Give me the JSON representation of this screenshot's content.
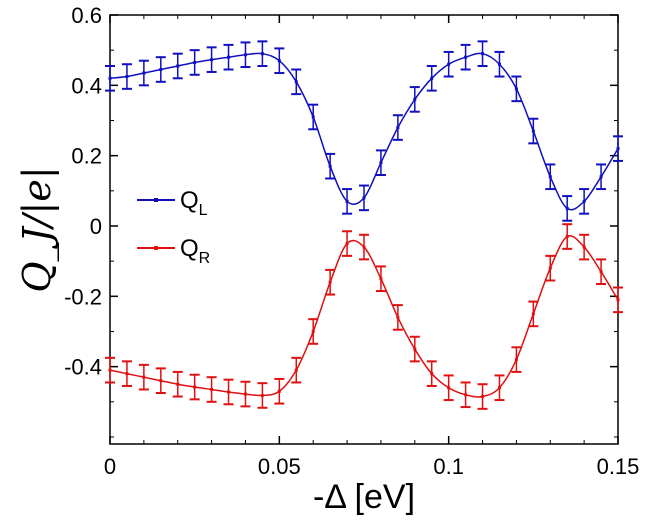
{
  "chart_data": {
    "type": "line",
    "xlabel": "-Δ [eV]",
    "ylabel": "Q_J/|e|",
    "xlim": [
      0,
      0.15
    ],
    "ylim": [
      -0.62,
      0.6
    ],
    "x_ticks": [
      "0",
      "0.05",
      "0.1",
      "0.15"
    ],
    "y_ticks": [
      "0.6",
      "0.4",
      "0.2",
      "0",
      "-0.2",
      "-0.4"
    ],
    "grid": false,
    "legend_placement": "center-left",
    "series": [
      {
        "name": "Q",
        "subscript": "L",
        "color": "#1010c0",
        "error": 0.035,
        "x": [
          0,
          0.005,
          0.01,
          0.015,
          0.02,
          0.025,
          0.03,
          0.035,
          0.04,
          0.045,
          0.05,
          0.055,
          0.06,
          0.065,
          0.07,
          0.075,
          0.08,
          0.085,
          0.09,
          0.095,
          0.1,
          0.105,
          0.11,
          0.115,
          0.12,
          0.125,
          0.13,
          0.135,
          0.14,
          0.145,
          0.15
        ],
        "values": [
          0.42,
          0.425,
          0.435,
          0.445,
          0.455,
          0.465,
          0.473,
          0.48,
          0.487,
          0.49,
          0.47,
          0.41,
          0.31,
          0.17,
          0.07,
          0.08,
          0.18,
          0.28,
          0.36,
          0.42,
          0.46,
          0.48,
          0.49,
          0.46,
          0.39,
          0.27,
          0.14,
          0.05,
          0.07,
          0.14,
          0.22
        ]
      },
      {
        "name": "Q",
        "subscript": "R",
        "color": "#e01010",
        "error": 0.035,
        "x": [
          0,
          0.005,
          0.01,
          0.015,
          0.02,
          0.025,
          0.03,
          0.035,
          0.04,
          0.045,
          0.05,
          0.055,
          0.06,
          0.065,
          0.07,
          0.075,
          0.08,
          0.085,
          0.09,
          0.095,
          0.1,
          0.105,
          0.11,
          0.115,
          0.12,
          0.125,
          0.13,
          0.135,
          0.14,
          0.145,
          0.15
        ],
        "values": [
          -0.41,
          -0.42,
          -0.43,
          -0.44,
          -0.45,
          -0.458,
          -0.465,
          -0.472,
          -0.478,
          -0.482,
          -0.47,
          -0.41,
          -0.3,
          -0.16,
          -0.05,
          -0.06,
          -0.15,
          -0.26,
          -0.35,
          -0.42,
          -0.46,
          -0.48,
          -0.485,
          -0.46,
          -0.38,
          -0.25,
          -0.12,
          -0.03,
          -0.06,
          -0.13,
          -0.21
        ]
      }
    ]
  }
}
